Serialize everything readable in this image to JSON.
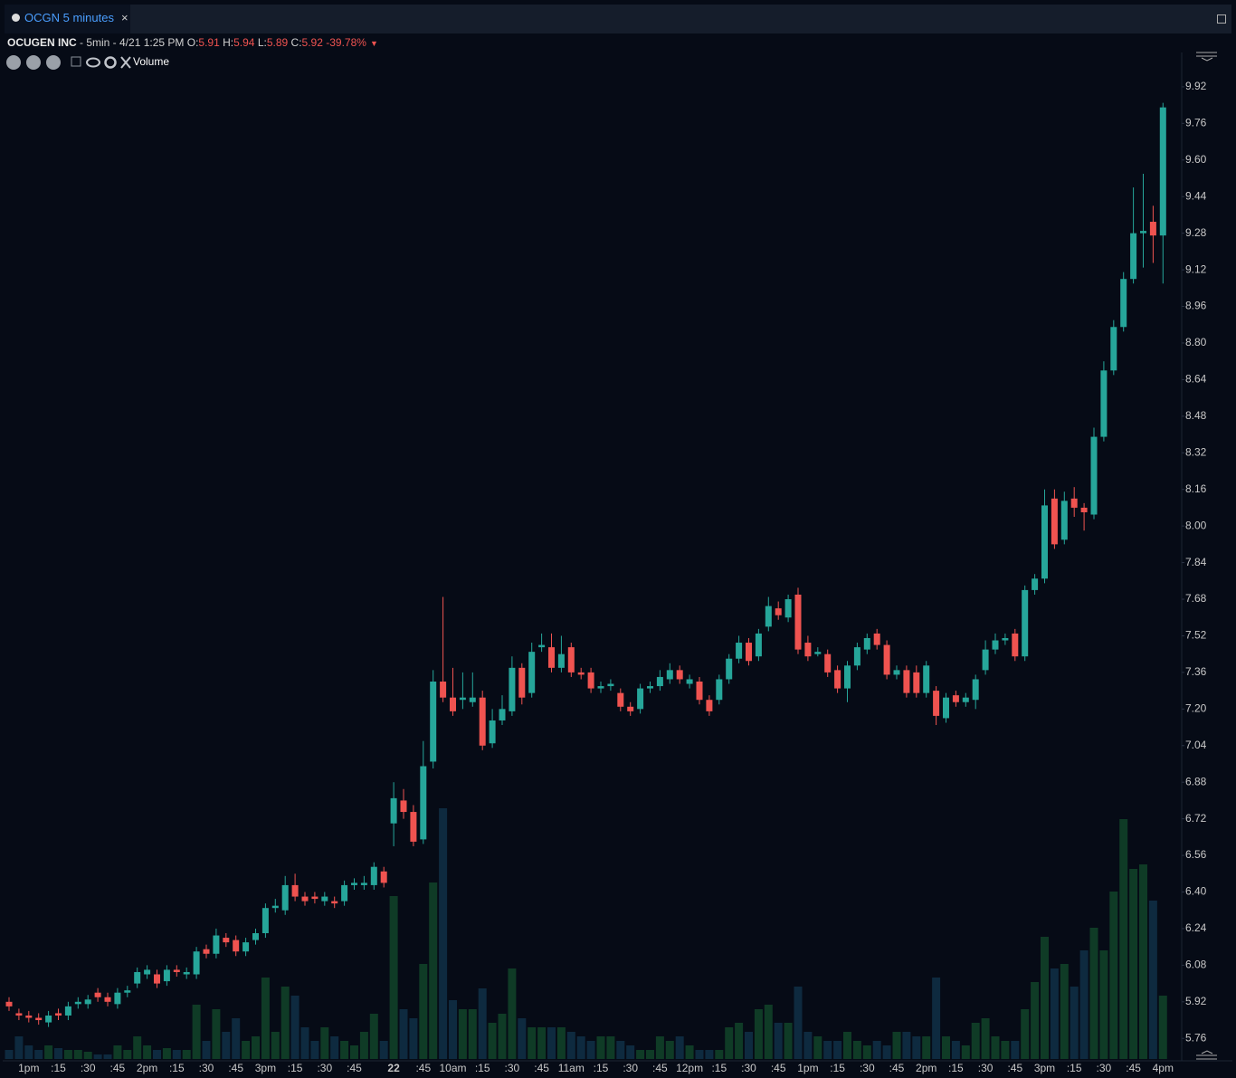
{
  "tab": {
    "label": "OCGN 5 minutes"
  },
  "header": {
    "name": "OCUGEN INC",
    "interval": " - 5min - 4/21 1:25 PM",
    "o_label": "O:",
    "o": "5.91",
    "h_label": "H:",
    "h": "5.94",
    "l_label": "L:",
    "l": "5.89",
    "c_label": "C:",
    "c": "5.92",
    "change": "-39.78%"
  },
  "chart_data": {
    "type": "candlestick",
    "legend": "Volume",
    "up_color": "#26a69a",
    "down_color": "#ef5350",
    "volume_up_color": "#0f3b26",
    "volume_down_color": "#0e2a3f",
    "ylim": [
      5.67,
      10.07
    ],
    "yticks": [
      9.92,
      9.76,
      {
        "value": 9.6,
        "label": "9.60"
      },
      9.44,
      9.28,
      9.12,
      8.96,
      {
        "value": 8.8,
        "label": "8.80"
      },
      8.64,
      8.48,
      8.32,
      8.16,
      {
        "value": 8.0,
        "label": "8.00"
      },
      7.84,
      7.68,
      7.52,
      7.36,
      {
        "value": 7.2,
        "label": "7.20"
      },
      7.04,
      6.88,
      6.72,
      6.56,
      {
        "value": 6.4,
        "label": "6.40"
      },
      6.24,
      6.08,
      5.92,
      5.76
    ],
    "volume_lim": [
      0,
      300
    ],
    "categories": [
      null,
      null,
      "1pm",
      null,
      null,
      ":15",
      null,
      null,
      ":30",
      null,
      null,
      ":45",
      null,
      null,
      "2pm",
      null,
      null,
      ":15",
      null,
      null,
      ":30",
      null,
      null,
      ":45",
      null,
      null,
      "3pm",
      null,
      null,
      ":15",
      null,
      null,
      ":30",
      null,
      null,
      ":45",
      null,
      null,
      null,
      "22",
      null,
      null,
      ":45",
      null,
      null,
      "10am",
      null,
      null,
      ":15",
      null,
      null,
      ":30",
      null,
      null,
      ":45",
      null,
      null,
      "11am",
      null,
      null,
      ":15",
      null,
      null,
      ":30",
      null,
      null,
      ":45",
      null,
      null,
      "12pm",
      null,
      null,
      ":15",
      null,
      null,
      ":30",
      null,
      null,
      ":45",
      null,
      null,
      "1pm",
      null,
      null,
      ":15",
      null,
      null,
      ":30",
      null,
      null,
      ":45",
      null,
      null,
      "2pm",
      null,
      null,
      ":15",
      null,
      null,
      ":30",
      null,
      null,
      ":45",
      null,
      null,
      "3pm",
      null,
      null,
      ":15",
      null,
      null,
      ":30",
      null,
      null,
      ":45",
      null,
      null,
      "4pm"
    ],
    "open": [
      5.92,
      5.87,
      5.86,
      5.85,
      5.83,
      5.87,
      5.86,
      5.91,
      5.91,
      5.96,
      5.94,
      5.91,
      5.96,
      6.0,
      6.04,
      6.04,
      6.01,
      6.06,
      6.04,
      6.04,
      6.15,
      6.13,
      6.2,
      6.19,
      6.14,
      6.19,
      6.22,
      6.33,
      6.32,
      6.43,
      6.38,
      6.38,
      6.36,
      6.36,
      6.36,
      6.43,
      6.43,
      6.43,
      6.49,
      6.7,
      6.8,
      6.75,
      6.63,
      6.97,
      7.32,
      7.25,
      7.24,
      7.23,
      7.25,
      7.05,
      7.15,
      7.19,
      7.38,
      7.27,
      7.47,
      7.47,
      7.38,
      7.47,
      7.36,
      7.36,
      7.29,
      7.3,
      7.27,
      7.21,
      7.2,
      7.29,
      7.3,
      7.33,
      7.37,
      7.31,
      7.32,
      7.24,
      7.24,
      7.33,
      7.42,
      7.49,
      7.43,
      7.56,
      7.64,
      7.6,
      7.7,
      7.49,
      7.44,
      7.44,
      7.37,
      7.29,
      7.39,
      7.46,
      7.53,
      7.48,
      7.35,
      7.37,
      7.36,
      7.27,
      7.28,
      7.16,
      7.26,
      7.23,
      7.24,
      7.37,
      7.46,
      7.5,
      7.53,
      7.43,
      7.72,
      7.77,
      8.12,
      7.94,
      8.12,
      8.08,
      8.05,
      8.39,
      8.68,
      8.87,
      9.08,
      9.28,
      9.33,
      9.27
    ],
    "high": [
      5.94,
      5.89,
      5.88,
      5.87,
      5.88,
      5.89,
      5.92,
      5.94,
      5.95,
      5.98,
      5.96,
      5.98,
      5.99,
      6.07,
      6.08,
      6.06,
      6.08,
      6.08,
      6.07,
      6.16,
      6.17,
      6.24,
      6.22,
      6.21,
      6.2,
      6.24,
      6.35,
      6.37,
      6.47,
      6.48,
      6.4,
      6.4,
      6.4,
      6.38,
      6.45,
      6.46,
      6.47,
      6.53,
      6.51,
      6.88,
      6.85,
      6.78,
      7.06,
      7.37,
      7.69,
      7.38,
      7.36,
      7.36,
      7.28,
      7.2,
      7.26,
      7.43,
      7.4,
      7.49,
      7.53,
      7.53,
      7.52,
      7.49,
      7.38,
      7.38,
      7.32,
      7.33,
      7.29,
      7.23,
      7.31,
      7.32,
      7.37,
      7.4,
      7.39,
      7.35,
      7.34,
      7.26,
      7.35,
      7.44,
      7.52,
      7.51,
      7.55,
      7.69,
      7.67,
      7.7,
      7.73,
      7.52,
      7.47,
      7.46,
      7.39,
      7.41,
      7.49,
      7.53,
      7.55,
      7.5,
      7.39,
      7.39,
      7.39,
      7.41,
      7.3,
      7.27,
      7.28,
      7.27,
      7.35,
      7.5,
      7.53,
      7.53,
      7.55,
      7.74,
      7.79,
      8.16,
      8.16,
      8.15,
      8.17,
      8.1,
      8.43,
      8.72,
      8.9,
      9.11,
      9.48,
      9.54,
      9.4,
      9.85
    ],
    "low": [
      5.88,
      5.84,
      5.83,
      5.82,
      5.81,
      5.84,
      5.84,
      5.89,
      5.89,
      5.92,
      5.9,
      5.89,
      5.94,
      5.98,
      6.02,
      5.98,
      5.99,
      6.03,
      6.02,
      6.02,
      6.11,
      6.11,
      6.16,
      6.12,
      6.12,
      6.17,
      6.2,
      6.31,
      6.3,
      6.36,
      6.34,
      6.35,
      6.34,
      6.33,
      6.34,
      6.41,
      6.41,
      6.41,
      6.42,
      6.6,
      6.72,
      6.6,
      6.61,
      6.94,
      7.23,
      7.17,
      7.2,
      7.21,
      7.02,
      7.03,
      7.13,
      7.17,
      7.22,
      7.25,
      7.45,
      7.36,
      7.36,
      7.34,
      7.33,
      7.27,
      7.27,
      7.28,
      7.19,
      7.17,
      7.18,
      7.27,
      7.28,
      7.31,
      7.31,
      7.29,
      7.22,
      7.17,
      7.22,
      7.31,
      7.4,
      7.39,
      7.41,
      7.54,
      7.59,
      7.58,
      7.44,
      7.41,
      7.43,
      7.34,
      7.27,
      7.23,
      7.37,
      7.44,
      7.46,
      7.33,
      7.33,
      7.25,
      7.25,
      7.25,
      7.13,
      7.14,
      7.21,
      7.21,
      7.2,
      7.35,
      7.44,
      7.48,
      7.41,
      7.41,
      7.7,
      7.75,
      7.9,
      7.92,
      8.04,
      7.98,
      8.03,
      8.37,
      8.66,
      8.85,
      9.06,
      9.13,
      9.15,
      9.06
    ],
    "close": [
      5.9,
      5.86,
      5.85,
      5.84,
      5.86,
      5.86,
      5.9,
      5.92,
      5.93,
      5.94,
      5.92,
      5.96,
      5.97,
      6.05,
      6.06,
      6.0,
      6.06,
      6.05,
      6.05,
      6.14,
      6.13,
      6.21,
      6.18,
      6.14,
      6.18,
      6.22,
      6.33,
      6.34,
      6.43,
      6.38,
      6.36,
      6.37,
      6.38,
      6.35,
      6.43,
      6.44,
      6.44,
      6.51,
      6.44,
      6.81,
      6.75,
      6.62,
      6.95,
      7.32,
      7.25,
      7.19,
      7.25,
      7.25,
      7.04,
      7.15,
      7.2,
      7.38,
      7.25,
      7.45,
      7.48,
      7.38,
      7.44,
      7.36,
      7.35,
      7.29,
      7.3,
      7.31,
      7.21,
      7.19,
      7.29,
      7.3,
      7.34,
      7.37,
      7.33,
      7.33,
      7.24,
      7.19,
      7.33,
      7.42,
      7.49,
      7.41,
      7.53,
      7.65,
      7.61,
      7.68,
      7.46,
      7.43,
      7.45,
      7.36,
      7.29,
      7.39,
      7.47,
      7.51,
      7.48,
      7.35,
      7.37,
      7.27,
      7.27,
      7.39,
      7.17,
      7.25,
      7.23,
      7.25,
      7.33,
      7.46,
      7.5,
      7.51,
      7.43,
      7.72,
      7.77,
      8.09,
      7.92,
      8.11,
      8.08,
      8.06,
      8.39,
      8.68,
      8.87,
      9.08,
      9.28,
      9.29,
      9.27,
      9.83
    ],
    "volume": [
      10,
      25,
      15,
      10,
      15,
      12,
      10,
      10,
      8,
      5,
      5,
      15,
      10,
      25,
      15,
      10,
      12,
      10,
      10,
      60,
      20,
      55,
      30,
      45,
      20,
      25,
      90,
      30,
      80,
      70,
      35,
      20,
      35,
      25,
      20,
      15,
      30,
      50,
      20,
      180,
      55,
      45,
      105,
      195,
      277,
      65,
      55,
      55,
      78,
      40,
      50,
      100,
      45,
      35,
      35,
      35,
      35,
      30,
      25,
      20,
      25,
      25,
      20,
      15,
      10,
      10,
      25,
      20,
      25,
      15,
      10,
      10,
      10,
      35,
      40,
      30,
      55,
      60,
      40,
      40,
      80,
      30,
      25,
      20,
      20,
      30,
      20,
      15,
      20,
      15,
      30,
      30,
      25,
      25,
      90,
      25,
      20,
      15,
      40,
      45,
      25,
      20,
      20,
      55,
      85,
      135,
      100,
      105,
      80,
      120,
      145,
      120,
      185,
      265,
      210,
      215,
      175,
      70
    ]
  }
}
